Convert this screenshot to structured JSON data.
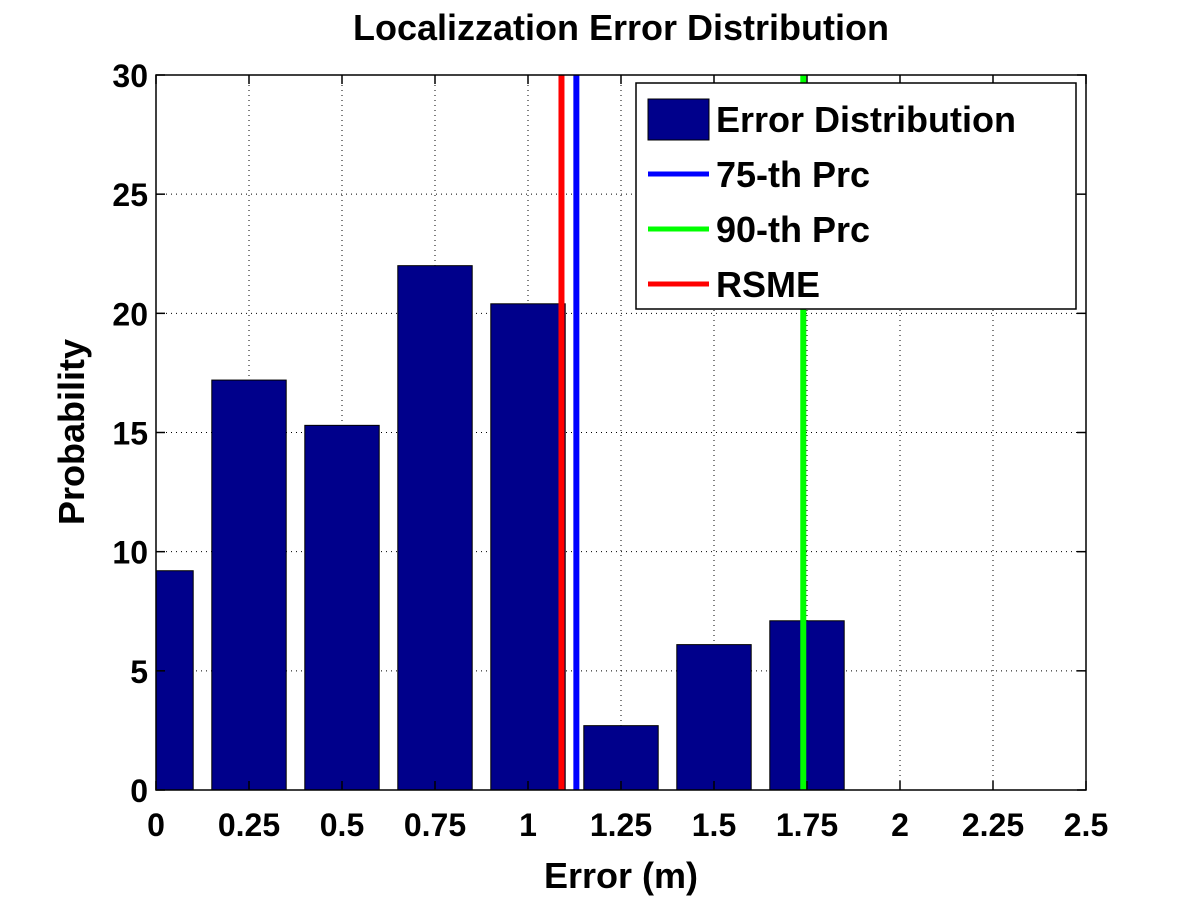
{
  "chart_data": {
    "type": "bar",
    "title": "Localizzation Error Distribution",
    "xlabel": "Error (m)",
    "ylabel": "Probability",
    "xlim": [
      0,
      2.5
    ],
    "ylim": [
      0,
      30
    ],
    "xticks": [
      0,
      0.25,
      0.5,
      0.75,
      1,
      1.25,
      1.5,
      1.75,
      2,
      2.25,
      2.5
    ],
    "xtick_labels": [
      "0",
      "0.25",
      "0.5",
      "0.75",
      "1",
      "1.25",
      "1.5",
      "1.75",
      "2",
      "2.25",
      "2.5"
    ],
    "yticks": [
      0,
      5,
      10,
      15,
      20,
      25,
      30
    ],
    "ytick_labels": [
      "0",
      "5",
      "10",
      "15",
      "20",
      "25",
      "30"
    ],
    "grid": true,
    "bar_width": 0.2,
    "series": [
      {
        "name": "Error Distribution",
        "color": "#00008b",
        "x": [
          0,
          0.25,
          0.5,
          0.75,
          1,
          1.25,
          1.5,
          1.75
        ],
        "values": [
          9.2,
          17.2,
          15.3,
          22,
          20.4,
          2.7,
          6.1,
          7.1
        ]
      }
    ],
    "vlines": [
      {
        "name": "75-th Prc",
        "color": "#0000ff",
        "x": 1.13
      },
      {
        "name": "90-th Prc",
        "color": "#00ff00",
        "x": 1.74
      },
      {
        "name": "RSME",
        "color": "#ff0000",
        "x": 1.09
      }
    ],
    "legend": {
      "position": "top-right",
      "entries": [
        "Error Distribution",
        "75-th Prc",
        "90-th Prc",
        "RSME"
      ]
    }
  }
}
